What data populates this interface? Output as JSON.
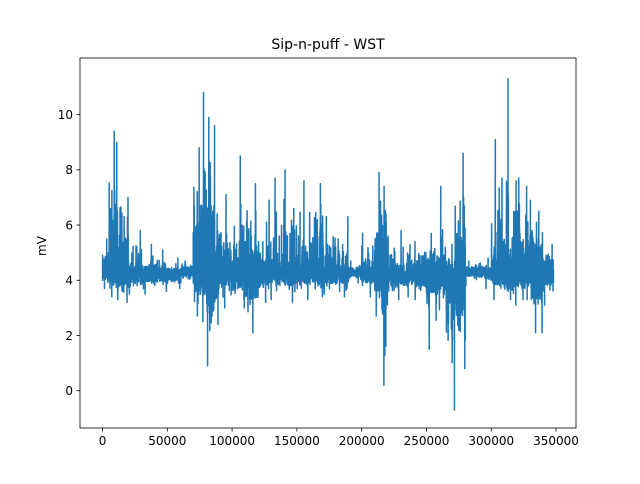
{
  "chart_data": {
    "type": "line",
    "title": "Sip-n-puff - WST",
    "xlabel": "",
    "ylabel": "mV",
    "xlim": [
      -17400,
      365400
    ],
    "ylim": [
      -1.35,
      12.05
    ],
    "xticks": [
      0,
      50000,
      100000,
      150000,
      200000,
      250000,
      300000,
      350000
    ],
    "xtick_labels": [
      "0",
      "50000",
      "100000",
      "150000",
      "200000",
      "250000",
      "300000",
      "350000"
    ],
    "yticks": [
      0,
      2,
      4,
      6,
      8,
      10
    ],
    "ytick_labels": [
      "0",
      "2",
      "4",
      "6",
      "8",
      "10"
    ],
    "grid": false,
    "line_color": "#1f77b4",
    "series": [
      {
        "name": "",
        "segments": [
          {
            "x0": 0,
            "x1": 5000,
            "mean": 4.3,
            "lo": 3.7,
            "hi": 5.5
          },
          {
            "x0": 5000,
            "x1": 10000,
            "mean": 4.3,
            "lo": 3.4,
            "hi": 9.4
          },
          {
            "x0": 10000,
            "x1": 15000,
            "mean": 4.3,
            "lo": 3.3,
            "hi": 9.0
          },
          {
            "x0": 15000,
            "x1": 20000,
            "mean": 4.3,
            "lo": 3.2,
            "hi": 7.0
          },
          {
            "x0": 20000,
            "x1": 30000,
            "mean": 4.2,
            "lo": 3.5,
            "hi": 5.8
          },
          {
            "x0": 30000,
            "x1": 40000,
            "mean": 4.2,
            "lo": 3.5,
            "hi": 5.3
          },
          {
            "x0": 40000,
            "x1": 50000,
            "mean": 4.2,
            "lo": 3.6,
            "hi": 5.1
          },
          {
            "x0": 50000,
            "x1": 60000,
            "mean": 4.2,
            "lo": 3.7,
            "hi": 4.8
          },
          {
            "x0": 60000,
            "x1": 70000,
            "mean": 4.3,
            "lo": 3.9,
            "hi": 4.7
          },
          {
            "x0": 70000,
            "x1": 75000,
            "mean": 4.3,
            "lo": 2.7,
            "hi": 8.8
          },
          {
            "x0": 75000,
            "x1": 80000,
            "mean": 4.3,
            "lo": 2.5,
            "hi": 10.8
          },
          {
            "x0": 80000,
            "x1": 85000,
            "mean": 4.3,
            "lo": 0.9,
            "hi": 9.9
          },
          {
            "x0": 85000,
            "x1": 90000,
            "mean": 4.3,
            "lo": 2.4,
            "hi": 9.6
          },
          {
            "x0": 90000,
            "x1": 100000,
            "mean": 4.3,
            "lo": 3.0,
            "hi": 7.1
          },
          {
            "x0": 100000,
            "x1": 110000,
            "mean": 4.3,
            "lo": 3.0,
            "hi": 8.5
          },
          {
            "x0": 110000,
            "x1": 120000,
            "mean": 4.3,
            "lo": 2.1,
            "hi": 7.5
          },
          {
            "x0": 120000,
            "x1": 130000,
            "mean": 4.3,
            "lo": 3.2,
            "hi": 6.9
          },
          {
            "x0": 130000,
            "x1": 140000,
            "mean": 4.3,
            "lo": 3.3,
            "hi": 7.7
          },
          {
            "x0": 140000,
            "x1": 150000,
            "mean": 4.3,
            "lo": 3.2,
            "hi": 8.0
          },
          {
            "x0": 150000,
            "x1": 160000,
            "mean": 4.3,
            "lo": 3.3,
            "hi": 7.6
          },
          {
            "x0": 160000,
            "x1": 170000,
            "mean": 4.3,
            "lo": 3.4,
            "hi": 7.5
          },
          {
            "x0": 170000,
            "x1": 180000,
            "mean": 4.2,
            "lo": 3.5,
            "hi": 6.3
          },
          {
            "x0": 180000,
            "x1": 190000,
            "mean": 4.2,
            "lo": 3.4,
            "hi": 6.3
          },
          {
            "x0": 190000,
            "x1": 200000,
            "mean": 4.3,
            "lo": 3.9,
            "hi": 4.7
          },
          {
            "x0": 200000,
            "x1": 210000,
            "mean": 4.3,
            "lo": 3.4,
            "hi": 5.7
          },
          {
            "x0": 210000,
            "x1": 215000,
            "mean": 4.3,
            "lo": 2.7,
            "hi": 7.9
          },
          {
            "x0": 215000,
            "x1": 220000,
            "mean": 4.3,
            "lo": 0.2,
            "hi": 7.4
          },
          {
            "x0": 220000,
            "x1": 230000,
            "mean": 4.2,
            "lo": 3.3,
            "hi": 5.6
          },
          {
            "x0": 230000,
            "x1": 240000,
            "mean": 4.2,
            "lo": 3.4,
            "hi": 5.8
          },
          {
            "x0": 240000,
            "x1": 250000,
            "mean": 4.2,
            "lo": 3.3,
            "hi": 5.4
          },
          {
            "x0": 250000,
            "x1": 260000,
            "mean": 4.2,
            "lo": 1.5,
            "hi": 5.7
          },
          {
            "x0": 260000,
            "x1": 265000,
            "mean": 4.2,
            "lo": 3.0,
            "hi": 7.4
          },
          {
            "x0": 265000,
            "x1": 272000,
            "mean": 4.2,
            "lo": -0.7,
            "hi": 5.3
          },
          {
            "x0": 272000,
            "x1": 280000,
            "mean": 4.2,
            "lo": 0.8,
            "hi": 8.6
          },
          {
            "x0": 280000,
            "x1": 290000,
            "mean": 4.3,
            "lo": 3.8,
            "hi": 4.7
          },
          {
            "x0": 290000,
            "x1": 300000,
            "mean": 4.3,
            "lo": 3.7,
            "hi": 4.8
          },
          {
            "x0": 300000,
            "x1": 310000,
            "mean": 4.3,
            "lo": 3.3,
            "hi": 9.1
          },
          {
            "x0": 310000,
            "x1": 315000,
            "mean": 4.3,
            "lo": 3.3,
            "hi": 11.3
          },
          {
            "x0": 315000,
            "x1": 320000,
            "mean": 4.3,
            "lo": 3.1,
            "hi": 7.6
          },
          {
            "x0": 320000,
            "x1": 325000,
            "mean": 4.3,
            "lo": 3.3,
            "hi": 7.7
          },
          {
            "x0": 325000,
            "x1": 330000,
            "mean": 4.3,
            "lo": 3.3,
            "hi": 7.4
          },
          {
            "x0": 330000,
            "x1": 335000,
            "mean": 4.3,
            "lo": 2.1,
            "hi": 6.9
          },
          {
            "x0": 335000,
            "x1": 340000,
            "mean": 4.3,
            "lo": 2.1,
            "hi": 6.5
          },
          {
            "x0": 340000,
            "x1": 348000,
            "mean": 4.3,
            "lo": 3.1,
            "hi": 5.3
          }
        ]
      }
    ]
  }
}
